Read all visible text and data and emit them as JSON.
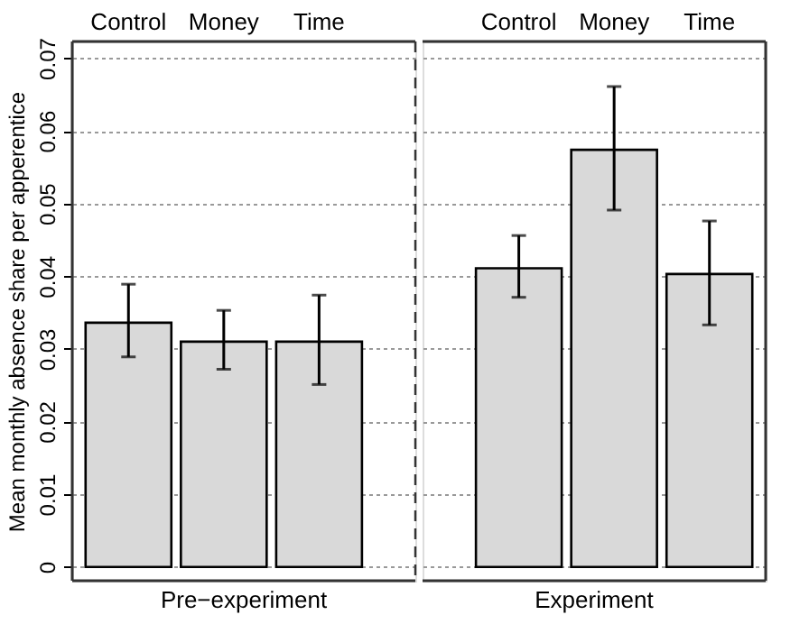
{
  "chart_data": [
    {
      "type": "bar",
      "categories": [
        "Control",
        "Money",
        "Time"
      ],
      "values": [
        0.0336,
        0.031,
        0.031
      ],
      "errors": [
        [
          0.0289,
          0.0389
        ],
        [
          0.0272,
          0.0353
        ],
        [
          0.0251,
          0.0374
        ]
      ],
      "color": "#d9d9d9",
      "xlabel": "Pre−experiment",
      "ylabel": "Mean monthly absence share per apperentice",
      "ylim": [
        -0.0019,
        0.0723
      ],
      "yticks": [
        0,
        0.01,
        0.02,
        0.03,
        0.04,
        0.05,
        0.06,
        0.07
      ],
      "grid": "y"
    },
    {
      "type": "bar",
      "categories": [
        "Control",
        "Money",
        "Time"
      ],
      "values": [
        0.0411,
        0.0574,
        0.0403
      ],
      "errors": [
        [
          0.0371,
          0.0456
        ],
        [
          0.0491,
          0.0661
        ],
        [
          0.0333,
          0.0476
        ]
      ],
      "color": "#d9d9d9",
      "xlabel": "Experiment",
      "ylim": [
        -0.0019,
        0.0723
      ],
      "yticks": [
        0,
        0.01,
        0.02,
        0.03,
        0.04,
        0.05,
        0.06,
        0.07
      ],
      "grid": "y",
      "tick_labels": "x"
    }
  ]
}
